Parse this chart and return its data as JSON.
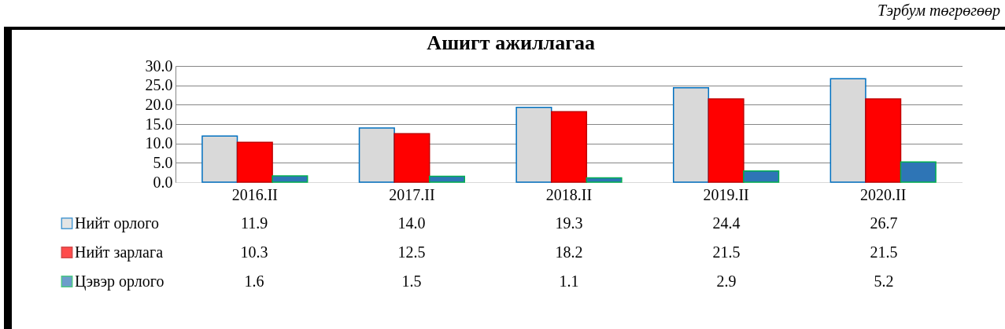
{
  "chart_data": {
    "type": "bar",
    "title": "Ашигт ажиллагаа",
    "annotations": [
      "Тэрбум төгрөгөөр"
    ],
    "categories": [
      "2016.II",
      "2017.II",
      "2018.II",
      "2019.II",
      "2020.II"
    ],
    "series": [
      {
        "name": "Нийт орлого",
        "color": "#d9d9d9",
        "values": [
          11.9,
          14.0,
          19.3,
          24.4,
          26.7
        ],
        "value_labels": [
          "11.9",
          "14.0",
          "19.3",
          "24.4",
          "26.7"
        ]
      },
      {
        "name": "Нийт зарлага",
        "color": "#ff0000",
        "values": [
          10.3,
          12.5,
          18.2,
          21.5,
          21.5
        ],
        "value_labels": [
          "10.3",
          "12.5",
          "18.2",
          "21.5",
          "21.5"
        ]
      },
      {
        "name": "Цэвэр орлого",
        "color": "#2e75b6",
        "values": [
          1.6,
          1.5,
          1.1,
          2.9,
          5.2
        ],
        "value_labels": [
          "1.6",
          "1.5",
          "1.1",
          "2.9",
          "5.2"
        ]
      }
    ],
    "ylim": [
      0,
      30
    ],
    "yticks": [
      {
        "value": 0,
        "label": "0.0"
      },
      {
        "value": 5,
        "label": "5.0"
      },
      {
        "value": 10,
        "label": "10.0"
      },
      {
        "value": 15,
        "label": "15.0"
      },
      {
        "value": 20,
        "label": "20.0"
      },
      {
        "value": 25,
        "label": "25.0"
      },
      {
        "value": 30,
        "label": "30.0"
      }
    ],
    "grid": "y",
    "legend": "bottom"
  }
}
